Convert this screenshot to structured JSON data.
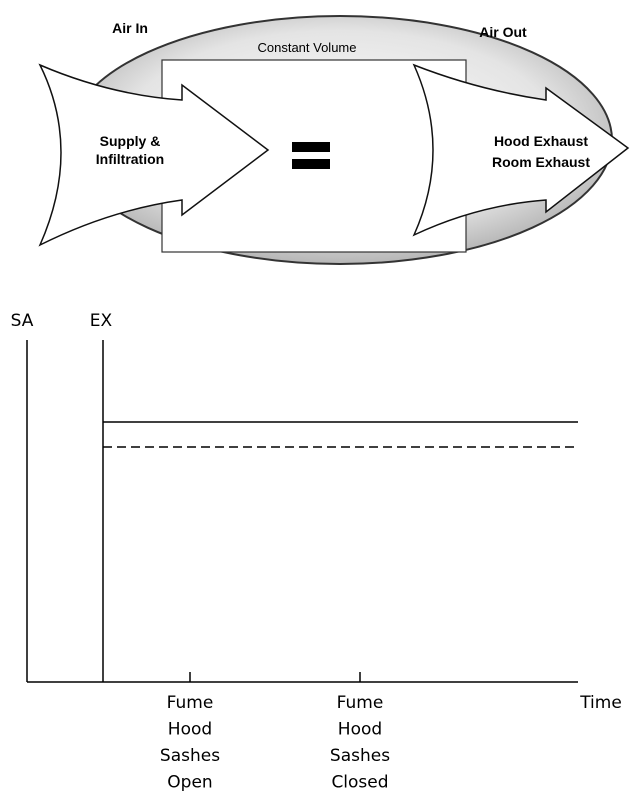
{
  "diagram": {
    "air_in": "Air In",
    "air_out": "Air Out",
    "constant_volume": "Constant Volume",
    "supply": [
      "Supply &",
      "Infiltration"
    ],
    "exhaust": [
      "Hood Exhaust",
      "Room Exhaust"
    ]
  },
  "graph": {
    "y_labels": [
      "SA",
      "EX"
    ],
    "x_label": "Time",
    "events": [
      [
        "Fume",
        "Hood",
        "Sashes",
        "Open"
      ],
      [
        "Fume",
        "Hood",
        "Sashes",
        "Closed"
      ]
    ]
  }
}
